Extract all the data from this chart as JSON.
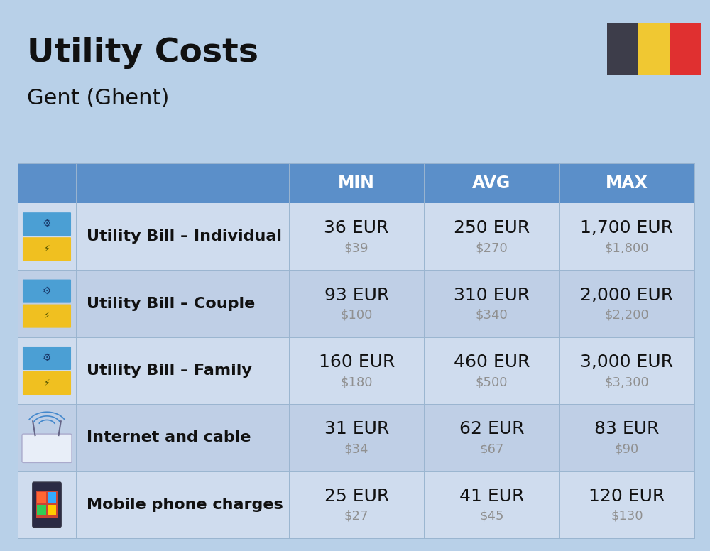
{
  "title": "Utility Costs",
  "subtitle": "Gent (Ghent)",
  "background_color": "#b8d0e8",
  "header_bg_color": "#5b8fc9",
  "header_text_color": "#ffffff",
  "row_bg_colors": [
    "#cfdcee",
    "#bfcfe6"
  ],
  "cell_line_color": "#9ab5d0",
  "rows": [
    {
      "label": "Utility Bill – Individual",
      "min_eur": "36 EUR",
      "min_usd": "$39",
      "avg_eur": "250 EUR",
      "avg_usd": "$270",
      "max_eur": "1,700 EUR",
      "max_usd": "$1,800"
    },
    {
      "label": "Utility Bill – Couple",
      "min_eur": "93 EUR",
      "min_usd": "$100",
      "avg_eur": "310 EUR",
      "avg_usd": "$340",
      "max_eur": "2,000 EUR",
      "max_usd": "$2,200"
    },
    {
      "label": "Utility Bill – Family",
      "min_eur": "160 EUR",
      "min_usd": "$180",
      "avg_eur": "460 EUR",
      "avg_usd": "$500",
      "max_eur": "3,000 EUR",
      "max_usd": "$3,300"
    },
    {
      "label": "Internet and cable",
      "min_eur": "31 EUR",
      "min_usd": "$34",
      "avg_eur": "62 EUR",
      "avg_usd": "$67",
      "max_eur": "83 EUR",
      "max_usd": "$90"
    },
    {
      "label": "Mobile phone charges",
      "min_eur": "25 EUR",
      "min_usd": "$27",
      "avg_eur": "41 EUR",
      "avg_usd": "$45",
      "max_eur": "120 EUR",
      "max_usd": "$130"
    }
  ],
  "columns": [
    "MIN",
    "AVG",
    "MAX"
  ],
  "flag_colors": [
    "#3d3d4a",
    "#f0c832",
    "#e03030"
  ],
  "title_fontsize": 34,
  "subtitle_fontsize": 22,
  "header_fontsize": 17,
  "label_fontsize": 16,
  "eur_fontsize": 18,
  "usd_fontsize": 13,
  "text_color": "#111111",
  "usd_color": "#909090"
}
